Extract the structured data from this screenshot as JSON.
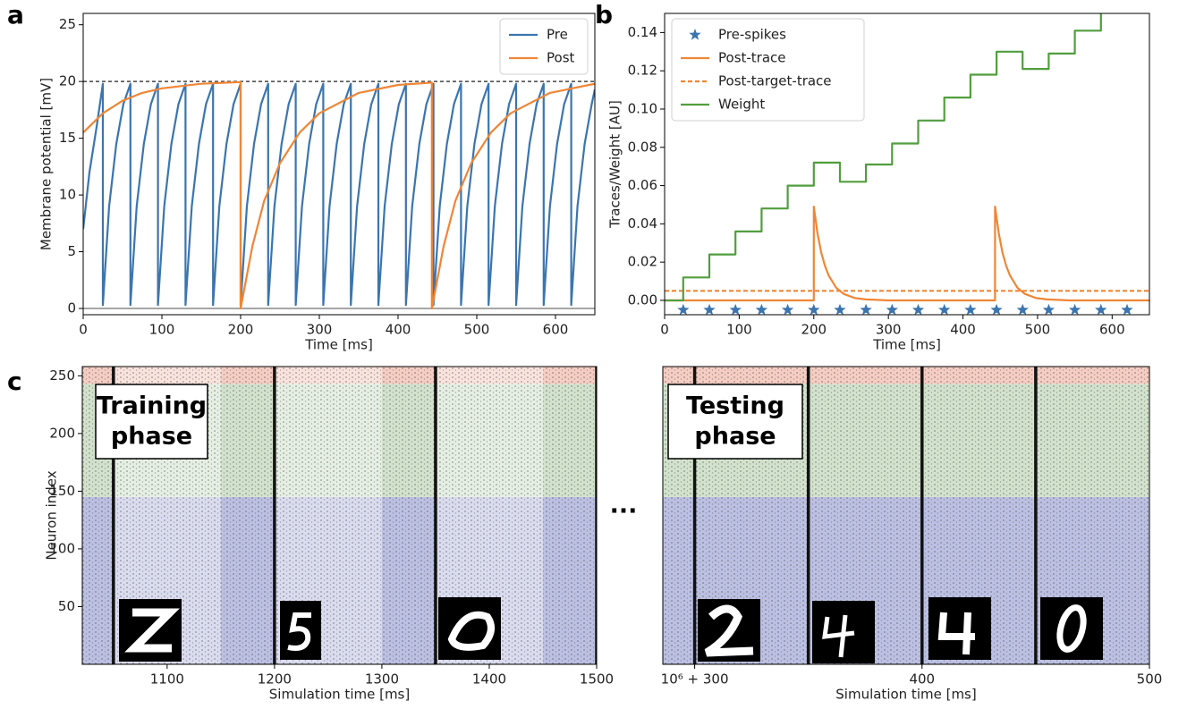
{
  "chart_data": [
    {
      "type": "line",
      "panel_label": "a",
      "xlabel": "Time [ms]",
      "ylabel": "Membrane potential [mV]",
      "xlim": [
        0,
        650
      ],
      "ylim": [
        -0.55,
        26
      ],
      "xticks": [
        0,
        100,
        200,
        300,
        400,
        500,
        600
      ],
      "yticks": [
        0,
        5,
        10,
        15,
        20,
        25
      ],
      "legend": "upper right",
      "hlines": [
        {
          "y": 20,
          "color": "#444444",
          "dashed": true
        },
        {
          "y": 0,
          "color": "#888888",
          "dashed": false
        }
      ],
      "series": [
        {
          "name": "Pre",
          "color": "#3b75af",
          "style": "line",
          "x": [
            0,
            8,
            17,
            25,
            25,
            33,
            42,
            51,
            60,
            60,
            68,
            77,
            86,
            95,
            95,
            103,
            112,
            121,
            130,
            130,
            138,
            147,
            156,
            165,
            165,
            173,
            182,
            191,
            200,
            200,
            208,
            217,
            226,
            235,
            235,
            243,
            252,
            261,
            270,
            270,
            278,
            287,
            296,
            305,
            305,
            313,
            322,
            331,
            340,
            340,
            348,
            357,
            366,
            375,
            375,
            383,
            392,
            401,
            410,
            410,
            418,
            427,
            436,
            445,
            445,
            453,
            462,
            471,
            480,
            480,
            488,
            497,
            506,
            515,
            515,
            523,
            532,
            541,
            550,
            550,
            558,
            567,
            576,
            585,
            585,
            593,
            602,
            611,
            620,
            620,
            628,
            637,
            646,
            650
          ],
          "values": [
            7,
            12,
            16,
            19.8,
            0.3,
            9,
            14.5,
            18,
            19.8,
            0.3,
            9,
            14.5,
            18,
            19.8,
            0.3,
            9,
            14.5,
            18,
            19.8,
            0.3,
            9,
            14.5,
            18,
            19.8,
            0.3,
            9,
            14.5,
            18,
            19.8,
            0.3,
            9,
            14.5,
            18,
            19.8,
            0.3,
            9,
            14.5,
            18,
            19.8,
            0.3,
            9,
            14.5,
            18,
            19.8,
            0.3,
            9,
            14.5,
            18,
            19.8,
            0.3,
            9,
            14.5,
            18,
            19.8,
            0.3,
            9,
            14.5,
            18,
            19.8,
            0.3,
            9,
            14.5,
            18,
            19.8,
            0.3,
            9,
            14.5,
            18,
            19.8,
            0.3,
            9,
            14.5,
            18,
            19.8,
            0.3,
            9,
            14.5,
            18,
            19.8,
            0.3,
            9,
            14.5,
            18,
            19.8,
            0.3,
            9,
            14.5,
            18,
            19.8,
            0.3,
            9,
            14.5,
            18,
            19.3
          ]
        },
        {
          "name": "Post",
          "color": "#ef8636",
          "style": "line",
          "x": [
            0,
            25,
            50,
            75,
            100,
            150,
            200,
            200,
            215,
            230,
            250,
            275,
            300,
            350,
            400,
            443,
            443,
            458,
            473,
            493,
            518,
            543,
            593,
            650
          ],
          "values": [
            15.5,
            17.2,
            18.3,
            19,
            19.4,
            19.8,
            19.95,
            0,
            5.5,
            9.5,
            12.8,
            15.5,
            17.2,
            19,
            19.7,
            19.9,
            0,
            5.5,
            9.5,
            12.8,
            15.5,
            17.2,
            19,
            19.8
          ]
        }
      ]
    },
    {
      "type": "line",
      "panel_label": "b",
      "xlabel": "Time [ms]",
      "ylabel": "Traces/Weight [AU]",
      "xlim": [
        0,
        650
      ],
      "ylim": [
        -0.0075,
        0.15
      ],
      "xticks": [
        0,
        100,
        200,
        300,
        400,
        500,
        600
      ],
      "yticks": [
        {
          "value": 0,
          "label": "0.00"
        },
        {
          "value": 0.02,
          "label": "0.02"
        },
        {
          "value": 0.04,
          "label": "0.04"
        },
        {
          "value": 0.06,
          "label": "0.06"
        },
        {
          "value": 0.08,
          "label": "0.08"
        },
        {
          "value": 0.1,
          "label": "0.10"
        },
        {
          "value": 0.12,
          "label": "0.12"
        },
        {
          "value": 0.14,
          "label": "0.14"
        }
      ],
      "legend": "upper left",
      "series": [
        {
          "name": "Pre-spikes",
          "color": "#3b75af",
          "style": "star",
          "x": [
            25,
            60,
            95,
            130,
            165,
            200,
            235,
            270,
            305,
            340,
            375,
            410,
            445,
            480,
            515,
            550,
            585,
            620
          ],
          "values": [
            -0.005,
            -0.005,
            -0.005,
            -0.005,
            -0.005,
            -0.005,
            -0.005,
            -0.005,
            -0.005,
            -0.005,
            -0.005,
            -0.005,
            -0.005,
            -0.005,
            -0.005,
            -0.005,
            -0.005,
            -0.005
          ]
        },
        {
          "name": "Post-trace",
          "color": "#ef8636",
          "style": "line",
          "x": [
            0,
            200,
            200,
            205,
            210,
            215,
            220,
            230,
            240,
            255,
            270,
            300,
            443,
            443,
            448,
            453,
            458,
            463,
            473,
            483,
            498,
            513,
            543,
            650
          ],
          "values": [
            0,
            0,
            0.049,
            0.035,
            0.025,
            0.018,
            0.013,
            0.0066,
            0.0034,
            0.0012,
            0.0005,
            0,
            0,
            0.049,
            0.035,
            0.025,
            0.018,
            0.013,
            0.0066,
            0.0034,
            0.0012,
            0.0005,
            0,
            0
          ]
        },
        {
          "name": "Post-target-trace",
          "color": "#ef8636",
          "style": "dashed",
          "x": [
            0,
            650
          ],
          "values": [
            0.005,
            0.005
          ]
        },
        {
          "name": "Weight",
          "color": "#519e3e",
          "style": "line",
          "x": [
            0,
            25,
            25,
            60,
            60,
            95,
            95,
            130,
            130,
            165,
            165,
            200,
            200,
            235,
            235,
            270,
            270,
            305,
            305,
            340,
            340,
            375,
            375,
            410,
            410,
            445,
            445,
            480,
            480,
            515,
            515,
            550,
            550,
            585,
            585,
            650
          ],
          "values": [
            0,
            0,
            0.012,
            0.012,
            0.024,
            0.024,
            0.036,
            0.036,
            0.048,
            0.048,
            0.06,
            0.06,
            0.072,
            0.072,
            0.062,
            0.062,
            0.071,
            0.071,
            0.082,
            0.082,
            0.094,
            0.094,
            0.106,
            0.106,
            0.118,
            0.118,
            0.13,
            0.13,
            0.121,
            0.121,
            0.129,
            0.129,
            0.141,
            0.141,
            0.153,
            0.153
          ]
        }
      ]
    },
    {
      "type": "raster",
      "panel_label": "c",
      "xlabel": "Simulation time [ms]",
      "ylabel": "Neuron index",
      "xlim": [
        1021,
        1500
      ],
      "ylim": [
        0,
        258
      ],
      "xticks": [
        1100,
        1200,
        1300,
        1400,
        1500
      ],
      "yticks": [
        50,
        100,
        150,
        200,
        250
      ],
      "annotation": [
        "Training",
        "phase"
      ],
      "regions": [
        {
          "ymin": 0,
          "ymax": 145,
          "color": "#bcc0e2"
        },
        {
          "ymin": 145,
          "ymax": 243,
          "color": "#d2e2cc"
        },
        {
          "ymin": 243,
          "ymax": 258,
          "color": "#f5cdc2"
        }
      ],
      "presentations": [
        [
          1050,
          1150
        ],
        [
          1200,
          1300
        ],
        [
          1350,
          1450
        ]
      ],
      "separators": [
        1050,
        1200,
        1350,
        1500
      ]
    },
    {
      "type": "raster",
      "xlabel": "Simulation time [ms]",
      "break_mark": "...",
      "xlim": [
        286,
        500
      ],
      "ylim": [
        0,
        258
      ],
      "xticks": [
        {
          "value": 300,
          "label": "10⁶ + 300"
        },
        400,
        500
      ],
      "annotation": [
        "Testing",
        "phase"
      ],
      "regions": [
        {
          "ymin": 0,
          "ymax": 145,
          "color": "#bcc0e2"
        },
        {
          "ymin": 145,
          "ymax": 243,
          "color": "#d2e2cc"
        },
        {
          "ymin": 243,
          "ymax": 258,
          "color": "#f5cdc2"
        }
      ],
      "presentations": [],
      "separators": [
        300,
        350,
        400,
        450
      ]
    }
  ]
}
